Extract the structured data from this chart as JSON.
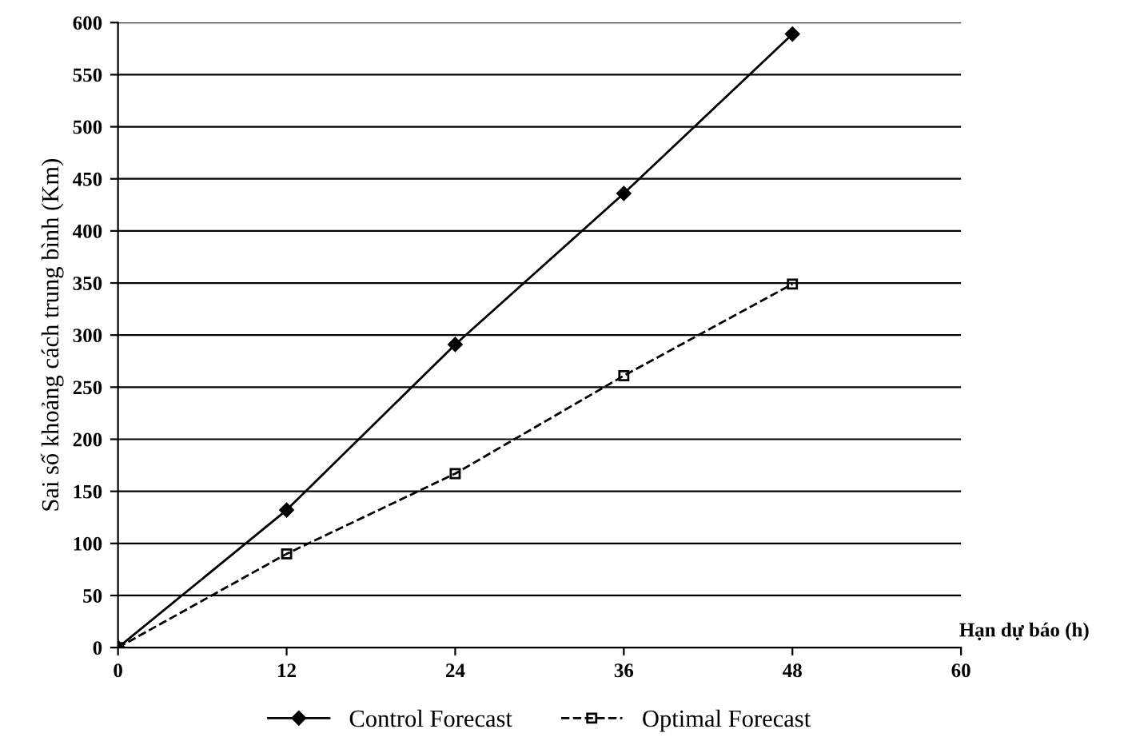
{
  "chart_data": {
    "type": "line",
    "xlabel": "Hạn dự báo (h)",
    "ylabel": "Sai số khoảng cách trung bình (Km)",
    "xlim": [
      0,
      60
    ],
    "xticks": [
      0,
      12,
      24,
      36,
      48,
      60
    ],
    "ylim": [
      0,
      600
    ],
    "yticks": [
      0,
      50,
      100,
      150,
      200,
      250,
      300,
      350,
      400,
      450,
      500,
      550,
      600
    ],
    "grid": "y",
    "legend": "bottom",
    "series": [
      {
        "name": "Control Forecast",
        "color": "#000000",
        "x": [
          0,
          12,
          24,
          36,
          48
        ],
        "values": [
          0,
          132,
          291,
          436,
          589
        ],
        "marker": "diamond",
        "line_style": "solid"
      },
      {
        "name": "Optimal Forecast",
        "color": "#000000",
        "x": [
          0,
          12,
          24,
          36,
          48
        ],
        "values": [
          0,
          90,
          167,
          261,
          349
        ],
        "marker": "square",
        "line_style": "dashed"
      }
    ]
  }
}
